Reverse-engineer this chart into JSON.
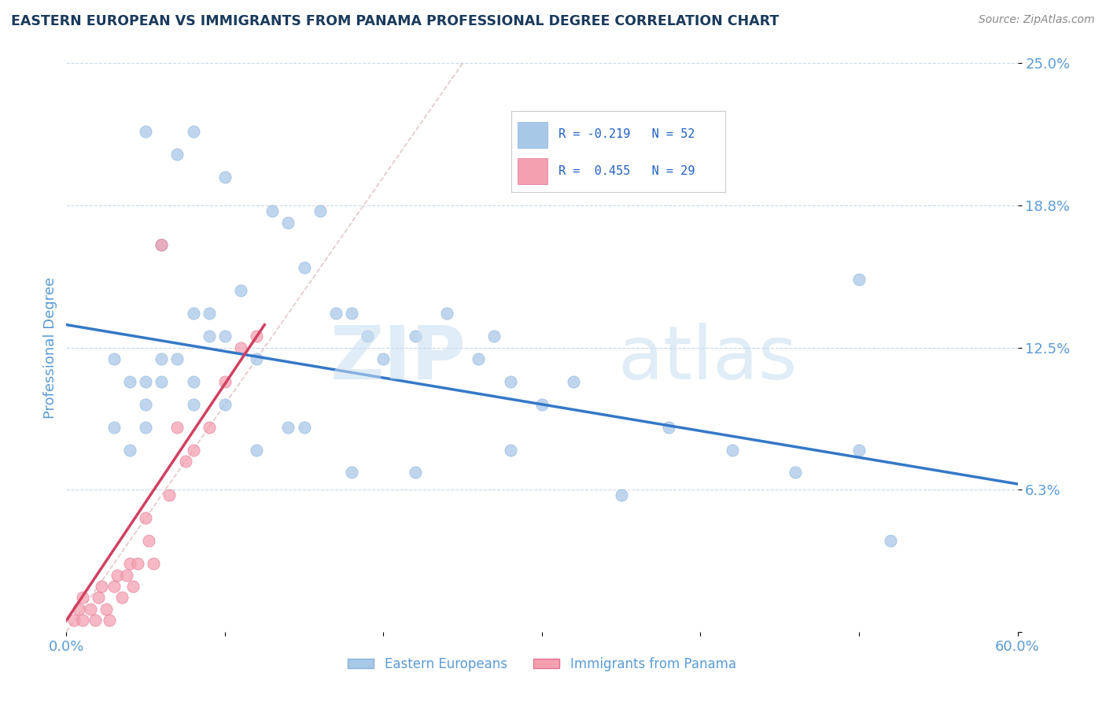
{
  "title": "EASTERN EUROPEAN VS IMMIGRANTS FROM PANAMA PROFESSIONAL DEGREE CORRELATION CHART",
  "source": "Source: ZipAtlas.com",
  "ylabel": "Professional Degree",
  "xlim": [
    0.0,
    0.6
  ],
  "ylim": [
    0.0,
    0.25
  ],
  "yticks": [
    0.0,
    0.0625,
    0.125,
    0.1875,
    0.25
  ],
  "ytick_labels": [
    "",
    "6.3%",
    "12.5%",
    "18.8%",
    "25.0%"
  ],
  "xticks": [
    0.0,
    0.1,
    0.2,
    0.3,
    0.4,
    0.5,
    0.6
  ],
  "xtick_labels": [
    "0.0%",
    "",
    "",
    "",
    "",
    "",
    "60.0%"
  ],
  "blue_scatter_x": [
    0.05,
    0.1,
    0.14,
    0.08,
    0.07,
    0.06,
    0.09,
    0.11,
    0.09,
    0.08,
    0.07,
    0.06,
    0.05,
    0.08,
    0.1,
    0.12,
    0.15,
    0.17,
    0.19,
    0.22,
    0.24,
    0.26,
    0.28,
    0.32,
    0.27,
    0.2,
    0.18,
    0.14,
    0.3,
    0.38,
    0.42,
    0.46,
    0.5,
    0.03,
    0.04,
    0.05,
    0.06,
    0.03,
    0.04,
    0.05,
    0.08,
    0.1,
    0.12,
    0.15,
    0.18,
    0.22,
    0.28,
    0.35,
    0.5,
    0.52,
    0.13,
    0.16
  ],
  "blue_scatter_y": [
    0.22,
    0.2,
    0.18,
    0.22,
    0.21,
    0.17,
    0.14,
    0.15,
    0.13,
    0.14,
    0.12,
    0.12,
    0.11,
    0.11,
    0.13,
    0.12,
    0.16,
    0.14,
    0.13,
    0.13,
    0.14,
    0.12,
    0.11,
    0.11,
    0.13,
    0.12,
    0.14,
    0.09,
    0.1,
    0.09,
    0.08,
    0.07,
    0.08,
    0.12,
    0.11,
    0.1,
    0.11,
    0.09,
    0.08,
    0.09,
    0.1,
    0.1,
    0.08,
    0.09,
    0.07,
    0.07,
    0.08,
    0.06,
    0.155,
    0.04,
    0.185,
    0.185
  ],
  "pink_scatter_x": [
    0.005,
    0.008,
    0.01,
    0.01,
    0.015,
    0.018,
    0.02,
    0.022,
    0.025,
    0.027,
    0.03,
    0.032,
    0.035,
    0.038,
    0.04,
    0.042,
    0.045,
    0.05,
    0.052,
    0.055,
    0.06,
    0.065,
    0.07,
    0.075,
    0.08,
    0.09,
    0.1,
    0.11,
    0.12
  ],
  "pink_scatter_y": [
    0.005,
    0.01,
    0.005,
    0.015,
    0.01,
    0.005,
    0.015,
    0.02,
    0.01,
    0.005,
    0.02,
    0.025,
    0.015,
    0.025,
    0.03,
    0.02,
    0.03,
    0.05,
    0.04,
    0.03,
    0.17,
    0.06,
    0.09,
    0.075,
    0.08,
    0.09,
    0.11,
    0.125,
    0.13
  ],
  "blue_line_x": [
    0.0,
    0.6
  ],
  "blue_line_y": [
    0.135,
    0.065
  ],
  "pink_line_x": [
    0.0,
    0.125
  ],
  "pink_line_y": [
    0.005,
    0.135
  ],
  "diag_line_x": [
    0.0,
    0.25
  ],
  "diag_line_y": [
    0.0,
    0.25
  ],
  "blue_scatter_color": "#a8c8e8",
  "pink_scatter_color": "#f4a0b0",
  "blue_line_color": "#3478c8",
  "pink_line_color": "#d04060",
  "diag_line_color": "#d8b0b0",
  "legend_R_blue": "R = -0.219",
  "legend_N_blue": "N = 52",
  "legend_R_pink": "R =  0.455",
  "legend_N_pink": "N = 29",
  "watermark_zip": "ZIP",
  "watermark_atlas": "atlas",
  "title_color": "#1a3a5c",
  "axis_color": "#5b9bd5",
  "tick_color": "#5b9bd5",
  "grid_color": "#c8d8e8",
  "legend_text_color": "#2060c0",
  "legend_label_color": "#000000",
  "bottom_legend_blue": "Eastern Europeans",
  "bottom_legend_pink": "Immigrants from Panama"
}
